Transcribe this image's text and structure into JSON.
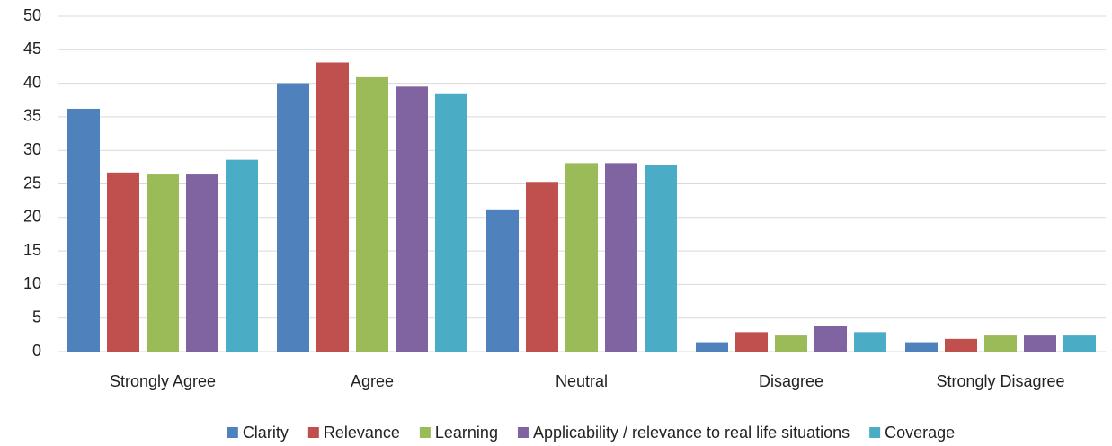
{
  "chart_data": {
    "type": "bar",
    "categories": [
      "Strongly Agree",
      "Agree",
      "Neutral",
      "Disagree",
      "Strongly Disagree"
    ],
    "series": [
      {
        "name": "Clarity",
        "color": "#4f81bd",
        "values": [
          36.2,
          40,
          21.2,
          1.4,
          1.4
        ]
      },
      {
        "name": "Relevance",
        "color": "#c0504d",
        "values": [
          26.7,
          43.1,
          25.3,
          2.9,
          1.9
        ]
      },
      {
        "name": "Learning",
        "color": "#9bbb59",
        "values": [
          26.4,
          40.9,
          28.1,
          2.4,
          2.4
        ]
      },
      {
        "name": "Applicability / relevance to real life situations",
        "color": "#8064a2",
        "values": [
          26.4,
          39.5,
          28.1,
          3.8,
          2.4
        ]
      },
      {
        "name": "Coverage",
        "color": "#4bacc6",
        "values": [
          28.6,
          38.5,
          27.8,
          2.9,
          2.4
        ]
      }
    ],
    "ylim": [
      0,
      50
    ],
    "yticks": [
      0,
      5,
      10,
      15,
      20,
      25,
      30,
      35,
      40,
      45,
      50
    ],
    "grid": true,
    "legend": "bottom"
  }
}
